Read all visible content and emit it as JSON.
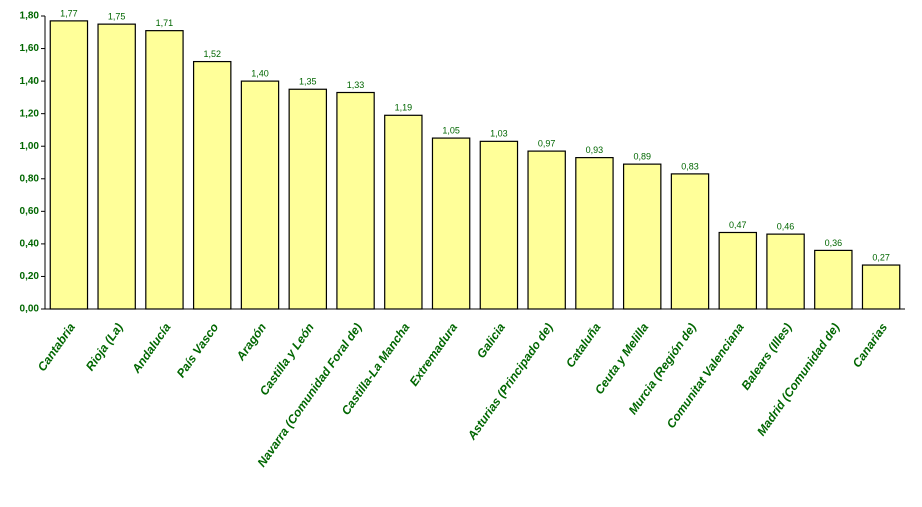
{
  "chart_data": {
    "type": "bar",
    "categories": [
      "Cantabria",
      "Rioja (La)",
      "Andalucía",
      "País Vasco",
      "Aragón",
      "Castilla y León",
      "Navarra (Comunidad Foral de)",
      "Castilla-La Mancha",
      "Extremadura",
      "Galicia",
      "Asturias (Principado de)",
      "Cataluña",
      "Ceuta y Melilla",
      "Murcia (Región de)",
      "Comunitat Valenciana",
      "Balears (Illes)",
      "Madrid (Comunidad de)",
      "Canarias"
    ],
    "values": [
      1.77,
      1.75,
      1.71,
      1.52,
      1.4,
      1.35,
      1.33,
      1.19,
      1.05,
      1.03,
      0.97,
      0.93,
      0.89,
      0.83,
      0.47,
      0.46,
      0.36,
      0.27
    ],
    "value_labels": [
      "1,77",
      "1,75",
      "1,71",
      "1,52",
      "1,40",
      "1,35",
      "1,33",
      "1,19",
      "1,05",
      "1,03",
      "0,97",
      "0,93",
      "0,89",
      "0,83",
      "0,47",
      "0,46",
      "0,36",
      "0,27"
    ],
    "color": "#ffff99",
    "ylim": [
      0,
      1.8
    ],
    "yticks": [
      {
        "value": 0,
        "label": "0,00"
      },
      {
        "value": 0.2,
        "label": "0,20"
      },
      {
        "value": 0.4,
        "label": "0,40"
      },
      {
        "value": 0.6,
        "label": "0,60"
      },
      {
        "value": 0.8,
        "label": "0,80"
      },
      {
        "value": 1.0,
        "label": "1,00"
      },
      {
        "value": 1.2,
        "label": "1,20"
      },
      {
        "value": 1.4,
        "label": "1,40"
      },
      {
        "value": 1.6,
        "label": "1,60"
      },
      {
        "value": 1.8,
        "label": "1,80"
      }
    ],
    "grid": false
  }
}
